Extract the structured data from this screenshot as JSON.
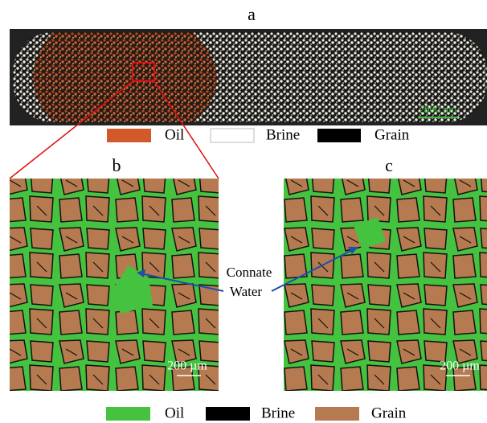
{
  "figure": {
    "panel_a": {
      "label": "a",
      "scale_bar": "2000 µm"
    },
    "legend_top": [
      "Oil",
      "Brine",
      "Grain"
    ],
    "panel_b": {
      "label": "b",
      "scale_bar": "200 µm"
    },
    "panel_c": {
      "label": "c",
      "scale_bar": "200 µm"
    },
    "annotation": [
      "Connate",
      "Water"
    ],
    "legend_bottom": [
      "Oil",
      "Brine",
      "Grain"
    ]
  }
}
